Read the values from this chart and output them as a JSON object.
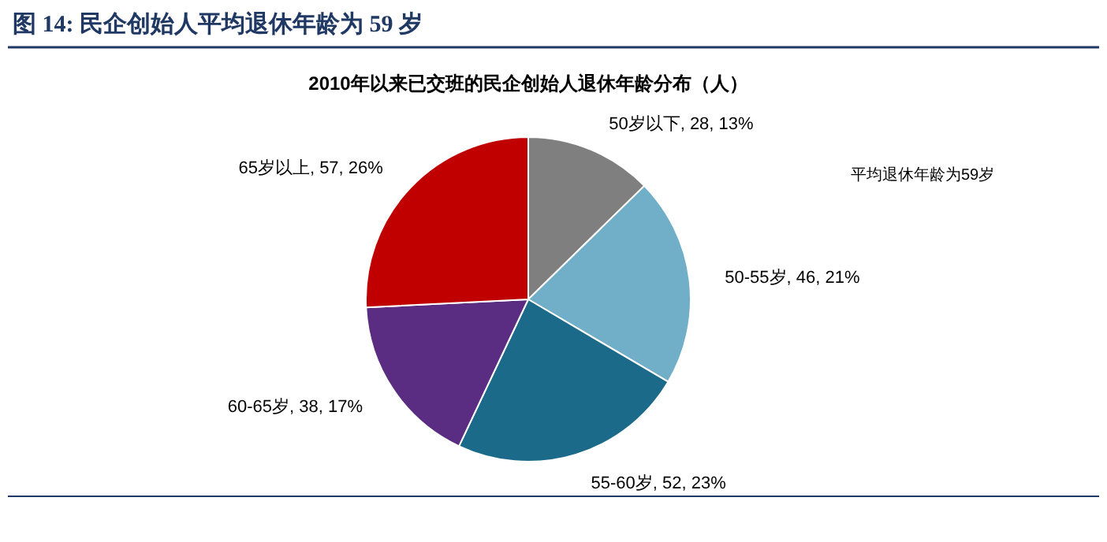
{
  "chart_data": {
    "type": "pie",
    "title": "图 14:  民企创始人平均退休年龄为 59 岁",
    "subtitle": "2010年以来已交班的民企创始人退休年龄分布（人）",
    "categories": [
      "50岁以下",
      "50-55岁",
      "55-60岁",
      "60-65岁",
      "65岁以上"
    ],
    "values": [
      28,
      46,
      52,
      38,
      57
    ],
    "value_labels": [
      "28, 13%",
      "46, 21%",
      "52, 23%",
      "38, 17%",
      "57, 26%"
    ],
    "colors": [
      "#7f7f7f",
      "#71afc9",
      "#1b6a8a",
      "#5a2d82",
      "#c00000"
    ],
    "annotations": [
      "平均退休年龄为59岁"
    ]
  }
}
